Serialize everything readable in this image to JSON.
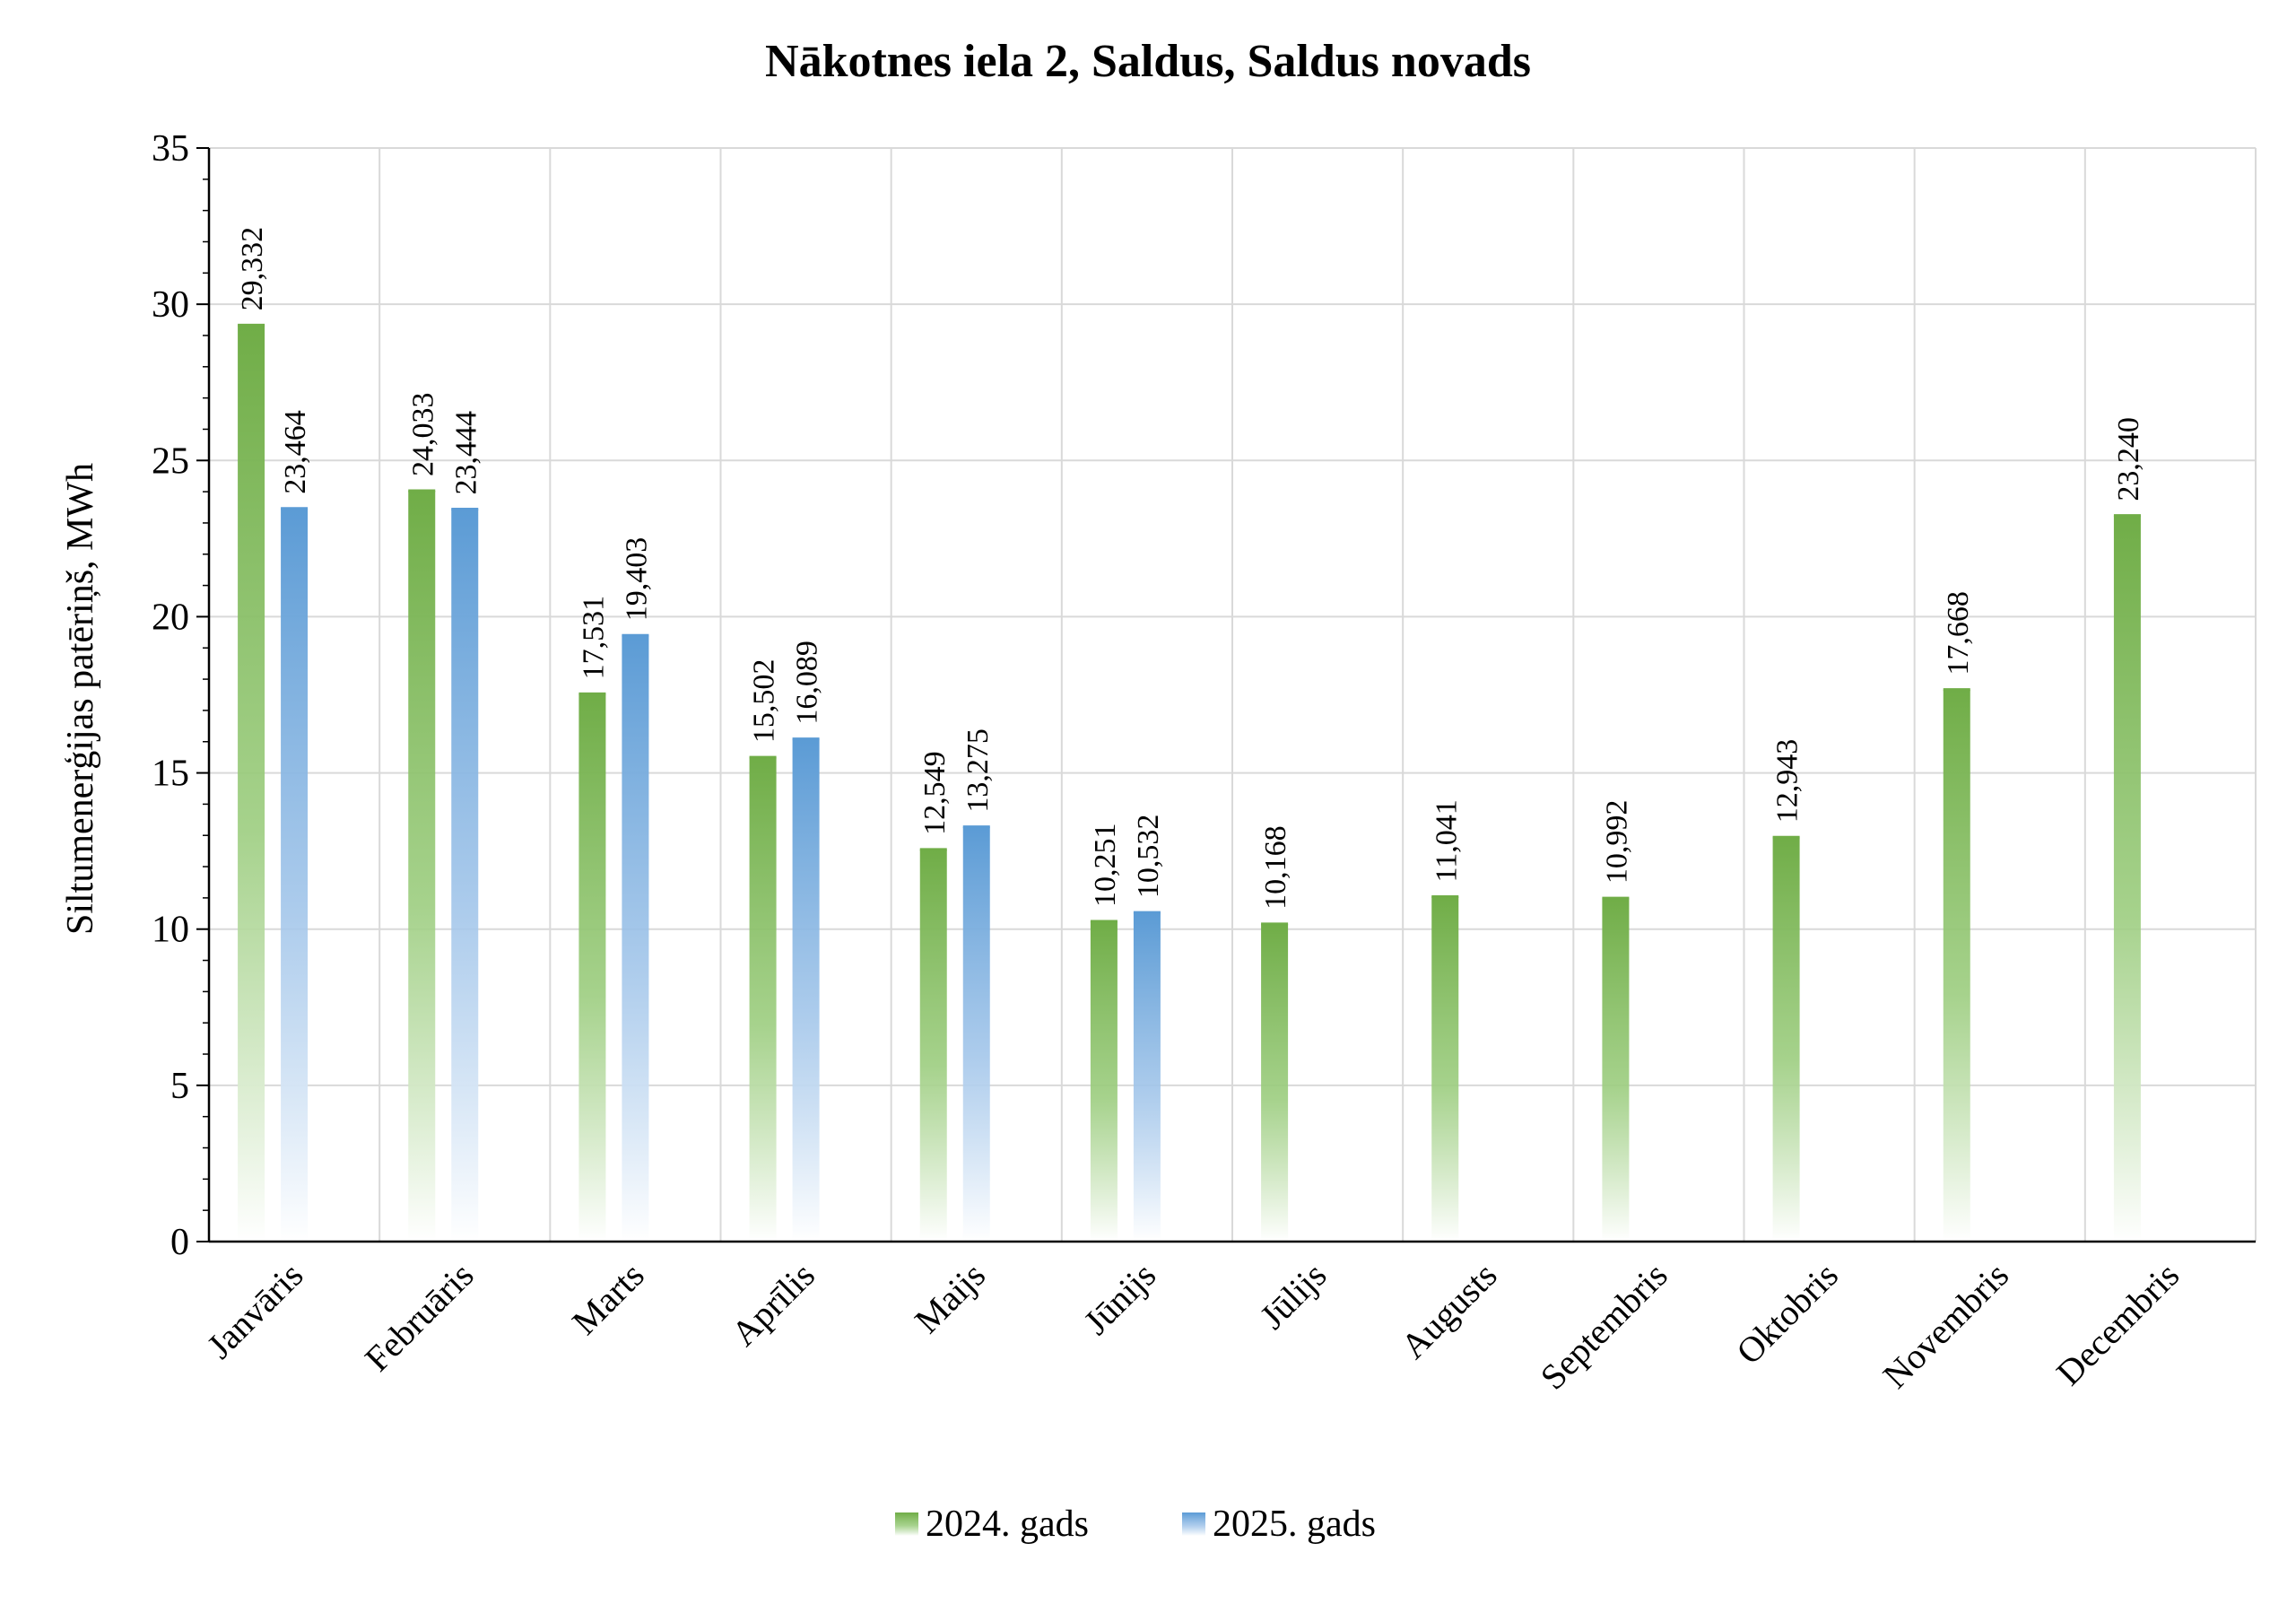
{
  "chart_data": {
    "type": "bar",
    "title": "Nākotnes iela 2, Saldus, Saldus novads",
    "xlabel": "",
    "ylabel": "Siltumenerģijas patēriņš, MWh",
    "ylim": [
      0,
      35
    ],
    "yticks": [
      "0",
      "5",
      "10",
      "15",
      "20",
      "25",
      "30",
      "35"
    ],
    "grid": true,
    "legend_position": "bottom",
    "categories": [
      "Janvāris",
      "Februāris",
      "Marts",
      "Aprīlis",
      "Maijs",
      "Jūnijs",
      "Jūlijs",
      "Augusts",
      "Septembris",
      "Oktobris",
      "Novembris",
      "Decembris"
    ],
    "series": [
      {
        "name": "2024. gads",
        "color": "#70ad47",
        "values": [
          29.332,
          24.033,
          17.531,
          15.502,
          12.549,
          10.251,
          10.168,
          11.041,
          10.992,
          12.943,
          17.668,
          23.24
        ],
        "labels": [
          "29,332",
          "24,033",
          "17,531",
          "15,502",
          "12,549",
          "10,251",
          "10,168",
          "11,041",
          "10,992",
          "12,943",
          "17,668",
          "23,240"
        ]
      },
      {
        "name": "2025. gads",
        "color": "#5b9bd5",
        "values": [
          23.464,
          23.444,
          19.403,
          16.089,
          13.275,
          10.532,
          null,
          null,
          null,
          null,
          null,
          null
        ],
        "labels": [
          "23,464",
          "23,444",
          "19,403",
          "16,089",
          "13,275",
          "10,532",
          "",
          "",
          "",
          "",
          "",
          ""
        ]
      }
    ]
  }
}
